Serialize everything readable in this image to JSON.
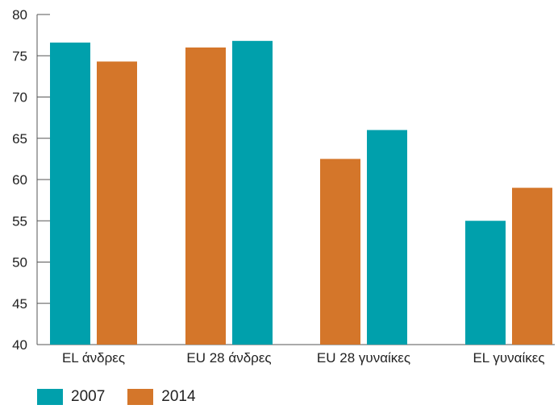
{
  "chart_data": {
    "type": "bar",
    "categories": [
      "EL άνδρες",
      "EU 28 άνδρες",
      "EU 28 γυναίκες",
      "EL γυναίκες"
    ],
    "series": [
      {
        "name": "2007",
        "color": "#00a0ac",
        "values": [
          76.6,
          76.8,
          66.0,
          55.0
        ]
      },
      {
        "name": "2014",
        "color": "#d4762a",
        "values": [
          74.3,
          76.0,
          62.5,
          59.0
        ]
      }
    ],
    "series_order": [
      [
        0,
        1
      ],
      [
        1,
        0
      ],
      [
        1,
        0
      ],
      [
        0,
        1
      ]
    ],
    "ylim": [
      40,
      80
    ],
    "yticks": [
      "40",
      "45",
      "50",
      "55",
      "60",
      "65",
      "70",
      "75",
      "80"
    ],
    "title": "",
    "xlabel": "",
    "ylabel": "",
    "grid": false,
    "legend_position": "bottom-left"
  }
}
